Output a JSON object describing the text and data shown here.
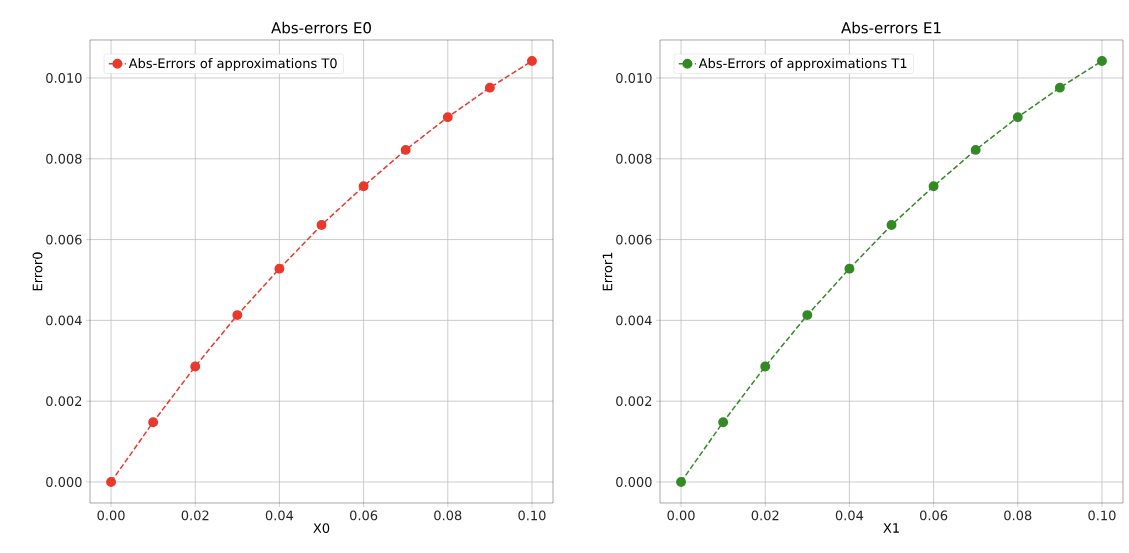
{
  "chart_data": [
    {
      "type": "line",
      "title": "Abs-errors E0",
      "xlabel": "X0",
      "ylabel": "Error0",
      "x": [
        0,
        0.01,
        0.02,
        0.03,
        0.04,
        0.05,
        0.06,
        0.07,
        0.08,
        0.09,
        0.1
      ],
      "series": [
        {
          "name": "Abs-Errors of approximations T0",
          "color": "#e8392c",
          "values": [
            0,
            0.00148,
            0.00286,
            0.00413,
            0.00528,
            0.00636,
            0.00732,
            0.00822,
            0.00903,
            0.00976,
            0.01042
          ]
        }
      ],
      "xlim": [
        -0.005,
        0.105
      ],
      "ylim": [
        -0.00052,
        0.01094
      ],
      "xticks": [
        {
          "value": 0,
          "label": "0.00"
        },
        {
          "value": 0.02,
          "label": "0.02"
        },
        {
          "value": 0.04,
          "label": "0.04"
        },
        {
          "value": 0.06,
          "label": "0.06"
        },
        {
          "value": 0.08,
          "label": "0.08"
        },
        {
          "value": 0.1,
          "label": "0.10"
        }
      ],
      "yticks": [
        {
          "value": 0,
          "label": "0.000"
        },
        {
          "value": 0.002,
          "label": "0.002"
        },
        {
          "value": 0.004,
          "label": "0.004"
        },
        {
          "value": 0.006,
          "label": "0.006"
        },
        {
          "value": 0.008,
          "label": "0.008"
        },
        {
          "value": 0.01,
          "label": "0.010"
        }
      ],
      "grid": true,
      "legend": "top left",
      "marker": "circle",
      "line_style": "dashed"
    },
    {
      "type": "line",
      "title": "Abs-errors E1",
      "xlabel": "X1",
      "ylabel": "Error1",
      "x": [
        0,
        0.01,
        0.02,
        0.03,
        0.04,
        0.05,
        0.06,
        0.07,
        0.08,
        0.09,
        0.1
      ],
      "series": [
        {
          "name": "Abs-Errors of approximations T1",
          "color": "#338a24",
          "values": [
            0,
            0.00148,
            0.00286,
            0.00413,
            0.00528,
            0.00636,
            0.00732,
            0.00822,
            0.00903,
            0.00976,
            0.01042
          ]
        }
      ],
      "xlim": [
        -0.005,
        0.105
      ],
      "ylim": [
        -0.00052,
        0.01094
      ],
      "xticks": [
        {
          "value": 0,
          "label": "0.00"
        },
        {
          "value": 0.02,
          "label": "0.02"
        },
        {
          "value": 0.04,
          "label": "0.04"
        },
        {
          "value": 0.06,
          "label": "0.06"
        },
        {
          "value": 0.08,
          "label": "0.08"
        },
        {
          "value": 0.1,
          "label": "0.10"
        }
      ],
      "yticks": [
        {
          "value": 0,
          "label": "0.000"
        },
        {
          "value": 0.002,
          "label": "0.002"
        },
        {
          "value": 0.004,
          "label": "0.004"
        },
        {
          "value": 0.006,
          "label": "0.006"
        },
        {
          "value": 0.008,
          "label": "0.008"
        },
        {
          "value": 0.01,
          "label": "0.010"
        }
      ],
      "grid": true,
      "legend": "top left",
      "marker": "circle",
      "line_style": "dashed"
    }
  ]
}
